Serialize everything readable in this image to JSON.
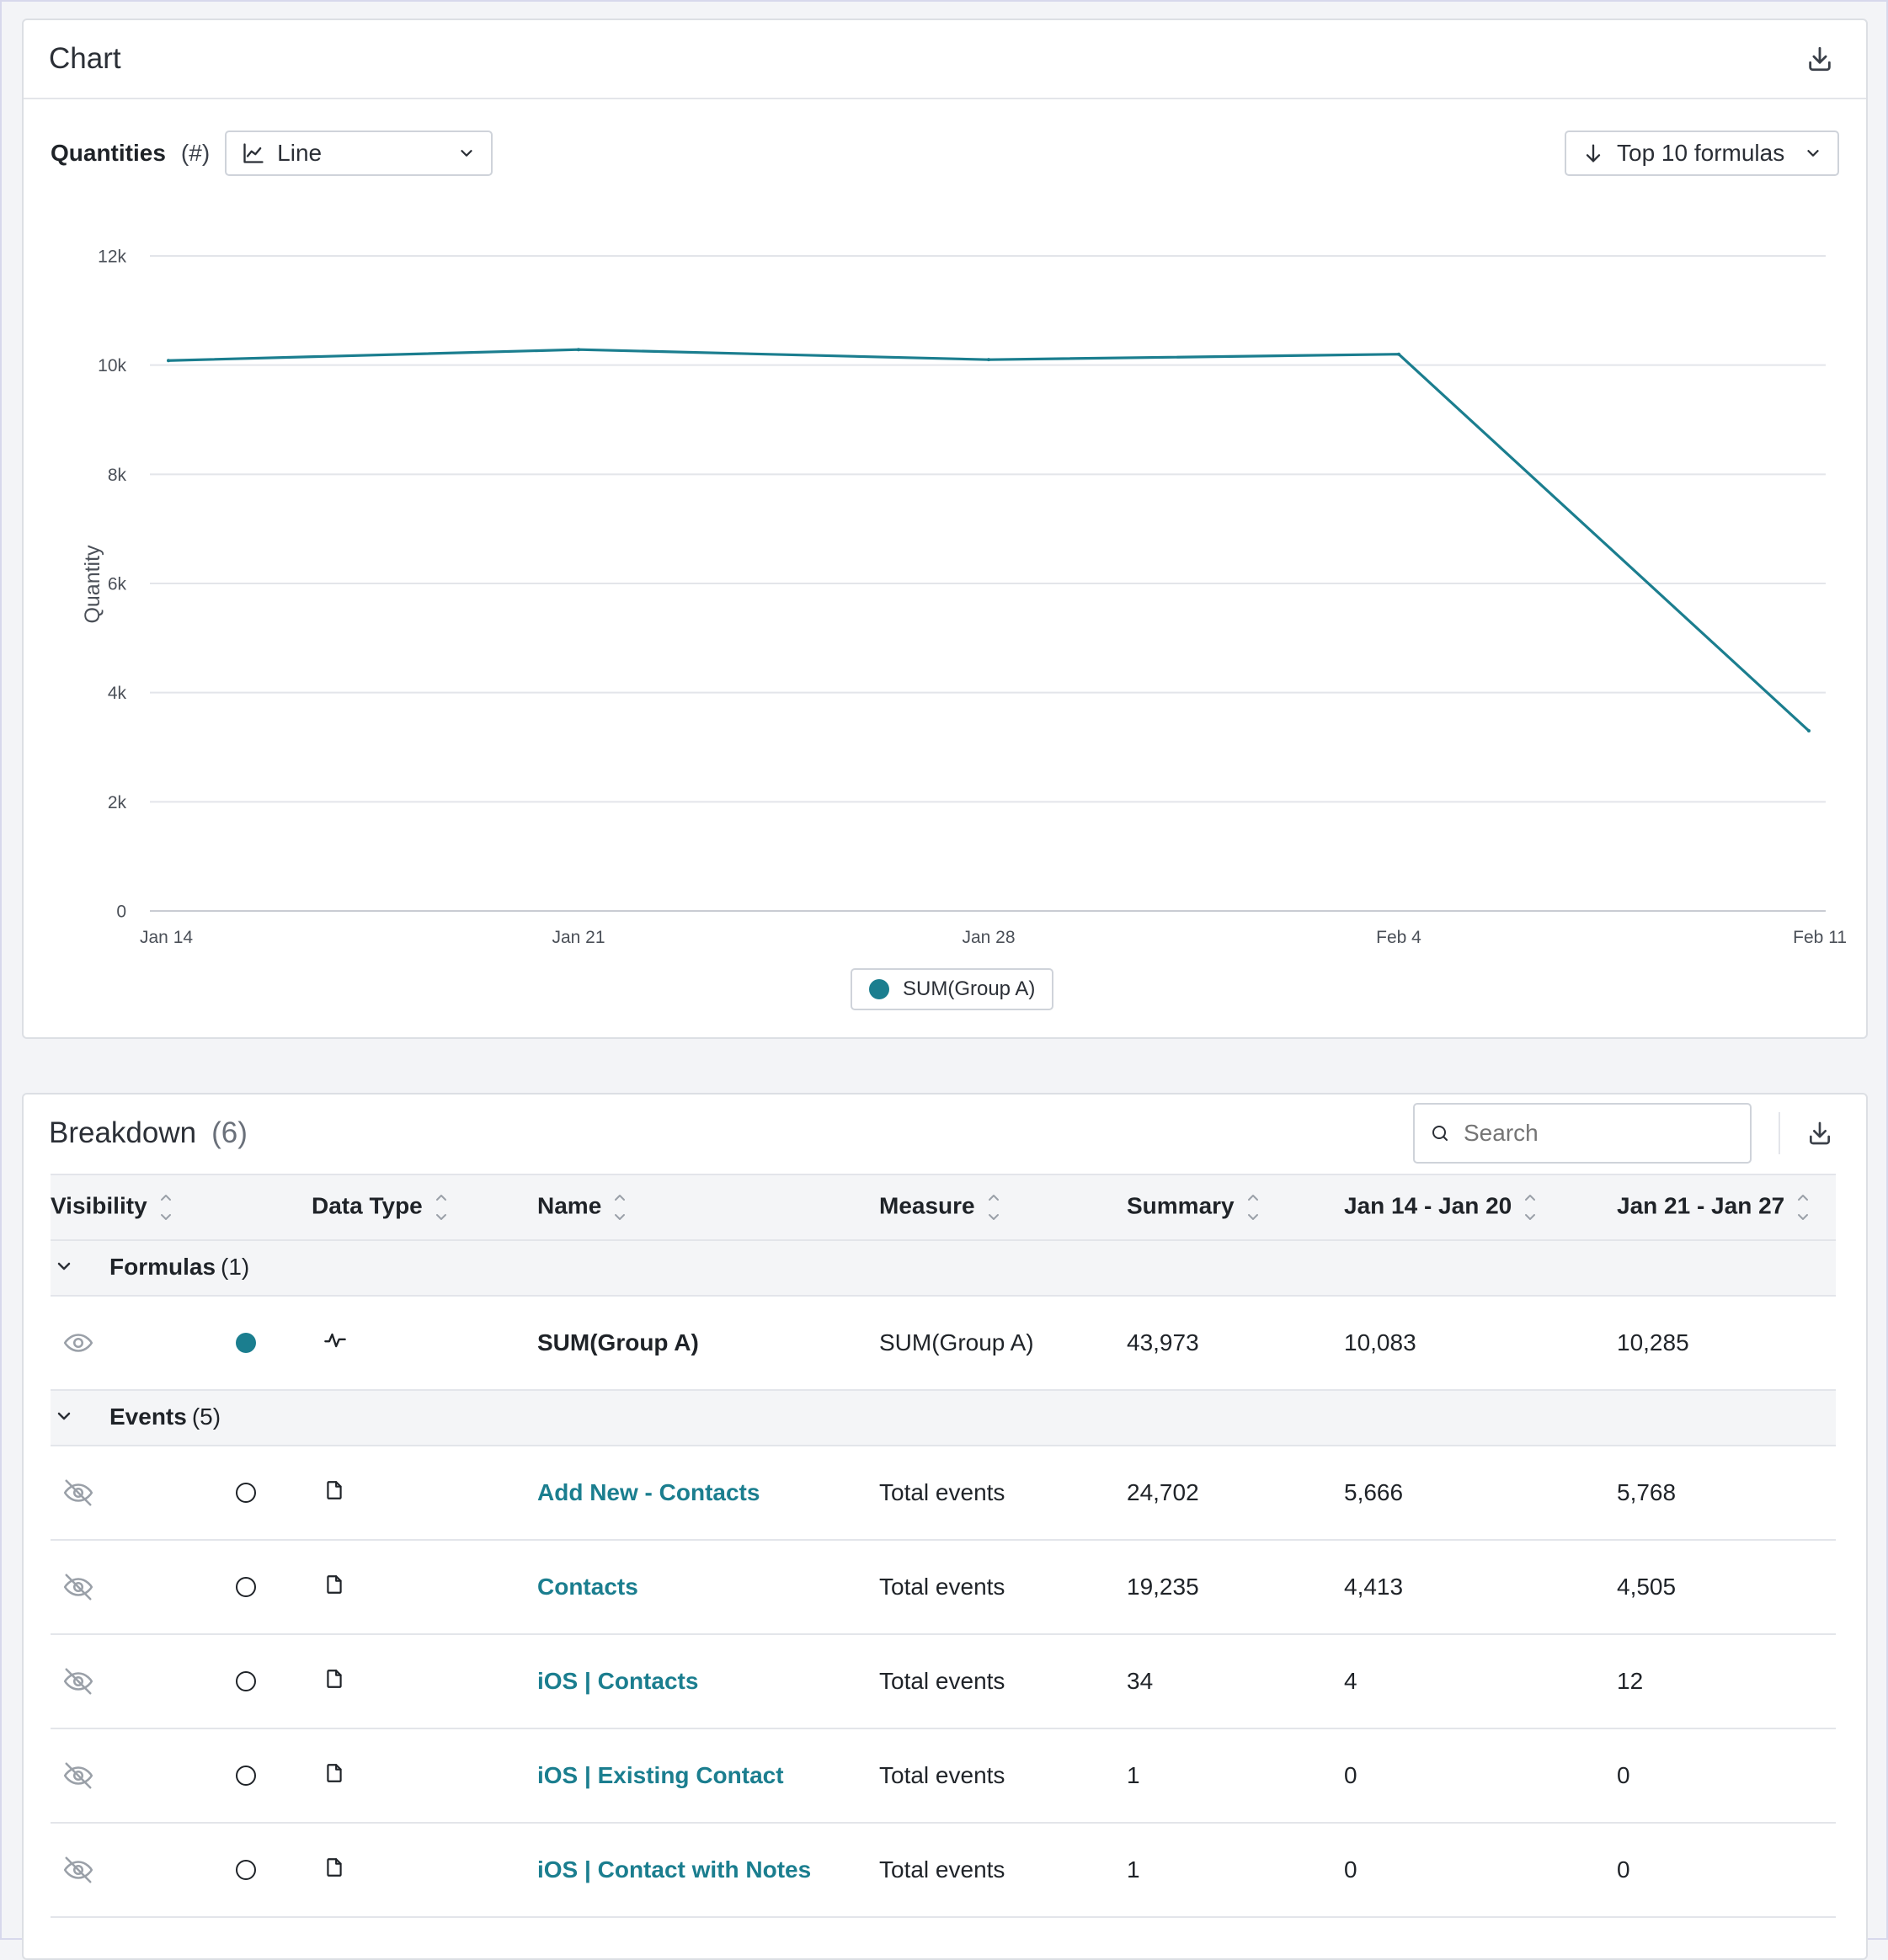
{
  "chart_card": {
    "title": "Chart",
    "quantities_label": "Quantities",
    "quantities_unit": "(#)",
    "chart_type": "Line",
    "top_selector": "Top 10 formulas",
    "download_icon": "download-icon"
  },
  "chart_data": {
    "type": "line",
    "x": [
      "Jan 14",
      "Jan 21",
      "Jan 28",
      "Feb 4",
      "Feb 11"
    ],
    "series": [
      {
        "name": "SUM(Group A)",
        "values": [
          10083,
          10285,
          10100,
          10200,
          3300
        ],
        "color": "#1b7e8f"
      }
    ],
    "ylabel": "Quantity",
    "ylim": [
      0,
      12000
    ],
    "yticks": [
      0,
      2000,
      4000,
      6000,
      8000,
      10000,
      12000
    ],
    "ytick_labels": [
      "0",
      "2k",
      "4k",
      "6k",
      "8k",
      "10k",
      "12k"
    ],
    "grid": true,
    "legend": "bottom-center"
  },
  "breakdown": {
    "title": "Breakdown",
    "count": "(6)",
    "search_placeholder": "Search",
    "columns": [
      "Visibility",
      "Data Type",
      "Name",
      "Measure",
      "Summary",
      "Jan 14 - Jan 20",
      "Jan 21 - Jan 27"
    ],
    "groups": [
      {
        "label": "Formulas",
        "count": "(1)",
        "rows": [
          {
            "visible": true,
            "selected": true,
            "type_icon": "pulse-icon",
            "name": "SUM(Group A)",
            "measure": "SUM(Group A)",
            "summary": "43,973",
            "w1": "10,083",
            "w2": "10,285"
          }
        ]
      },
      {
        "label": "Events",
        "count": "(5)",
        "rows": [
          {
            "visible": false,
            "selected": false,
            "type_icon": "file-icon",
            "name": "Add New - Contacts",
            "measure": "Total events",
            "summary": "24,702",
            "w1": "5,666",
            "w2": "5,768"
          },
          {
            "visible": false,
            "selected": false,
            "type_icon": "file-icon",
            "name": "Contacts",
            "measure": "Total events",
            "summary": "19,235",
            "w1": "4,413",
            "w2": "4,505"
          },
          {
            "visible": false,
            "selected": false,
            "type_icon": "file-icon",
            "name": "iOS | Contacts",
            "measure": "Total events",
            "summary": "34",
            "w1": "4",
            "w2": "12"
          },
          {
            "visible": false,
            "selected": false,
            "type_icon": "file-icon",
            "name": "iOS | Existing Contact",
            "measure": "Total events",
            "summary": "1",
            "w1": "0",
            "w2": "0"
          },
          {
            "visible": false,
            "selected": false,
            "type_icon": "file-icon",
            "name": "iOS | Contact with Notes",
            "measure": "Total events",
            "summary": "1",
            "w1": "0",
            "w2": "0"
          }
        ]
      }
    ]
  }
}
